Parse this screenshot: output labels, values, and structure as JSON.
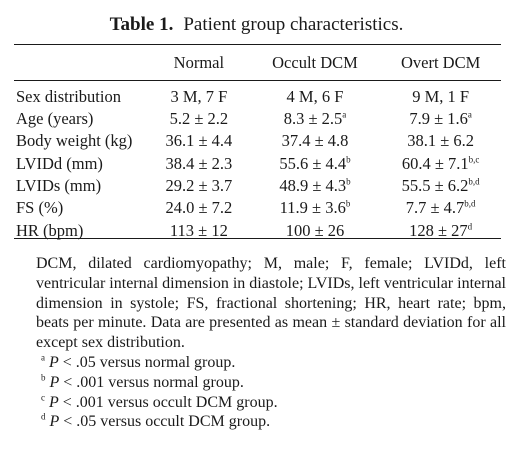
{
  "table": {
    "label": "Table 1.",
    "title": "Patient group characteristics.",
    "columns": [
      "",
      "Normal",
      "Occult DCM",
      "Overt DCM"
    ],
    "rows": [
      {
        "label": "Sex distribution",
        "cells": [
          {
            "v": "3 M, 7 F",
            "sup": ""
          },
          {
            "v": "4 M, 6 F",
            "sup": ""
          },
          {
            "v": "9 M, 1 F",
            "sup": ""
          }
        ]
      },
      {
        "label": "Age (years)",
        "cells": [
          {
            "v": "5.2 ± 2.2",
            "sup": ""
          },
          {
            "v": "8.3 ± 2.5",
            "sup": "a"
          },
          {
            "v": "7.9 ± 1.6",
            "sup": "a"
          }
        ]
      },
      {
        "label": "Body weight (kg)",
        "cells": [
          {
            "v": "36.1 ± 4.4",
            "sup": ""
          },
          {
            "v": "37.4 ± 4.8",
            "sup": ""
          },
          {
            "v": "38.1 ± 6.2",
            "sup": ""
          }
        ]
      },
      {
        "label": "LVIDd (mm)",
        "cells": [
          {
            "v": "38.4 ± 2.3",
            "sup": ""
          },
          {
            "v": "55.6 ± 4.4",
            "sup": "b"
          },
          {
            "v": "60.4 ± 7.1",
            "sup": "b,c"
          }
        ]
      },
      {
        "label": "LVIDs (mm)",
        "cells": [
          {
            "v": "29.2 ± 3.7",
            "sup": ""
          },
          {
            "v": "48.9 ± 4.3",
            "sup": "b"
          },
          {
            "v": "55.5 ± 6.2",
            "sup": "b,d"
          }
        ]
      },
      {
        "label": "FS (%)",
        "cells": [
          {
            "v": "24.0 ± 7.2",
            "sup": ""
          },
          {
            "v": "11.9 ± 3.6",
            "sup": "b"
          },
          {
            "v": "7.7 ± 4.7",
            "sup": "b,d"
          }
        ]
      },
      {
        "label": "HR (bpm)",
        "cells": [
          {
            "v": "113 ± 12",
            "sup": ""
          },
          {
            "v": "100 ± 26",
            "sup": ""
          },
          {
            "v": "128 ± 27",
            "sup": "d"
          }
        ]
      }
    ]
  },
  "notes": {
    "abbreviations": "DCM, dilated cardiomyopathy; M, male; F, female; LVIDd, left ventricular internal dimension in diastole; LVIDs, left ventricular internal dimension in systole; FS, fractional shortening; HR, heart rate; bpm, beats per minute. Data are presented as mean ± standard deviation for all except sex distribution.",
    "footnotes": [
      {
        "mark": "a",
        "p": "P",
        "text": " < .05 versus normal group."
      },
      {
        "mark": "b",
        "p": "P",
        "text": " < .001 versus normal group."
      },
      {
        "mark": "c",
        "p": "P",
        "text": " < .001 versus occult DCM group."
      },
      {
        "mark": "d",
        "p": "P",
        "text": " < .05 versus occult DCM group."
      }
    ]
  }
}
